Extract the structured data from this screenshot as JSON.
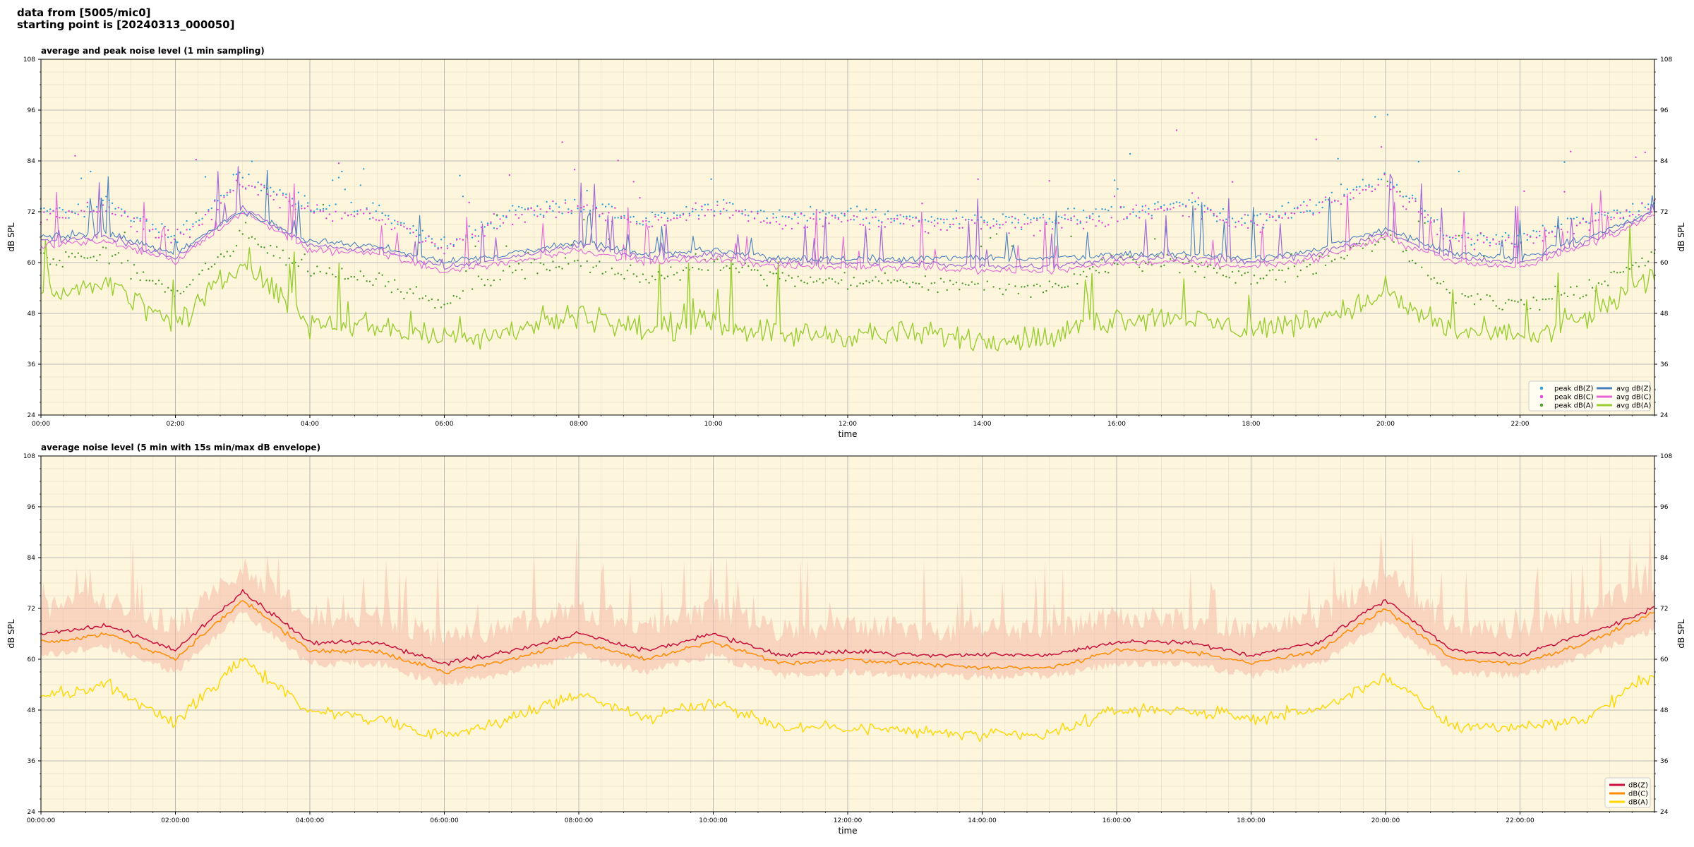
{
  "header": {
    "line1": "data from [5005/mic0]",
    "line2": "starting point is [20240313_000050]"
  },
  "colors": {
    "background": "#fdf6dc",
    "grid": "#b9b9b9",
    "peak_z": "#2a9ed8",
    "peak_c": "#e040d8",
    "peak_a": "#4c9a2a",
    "avg_z": "#4a7fbf",
    "avg_c": "#e865d8",
    "avg_a": "#9acd32",
    "top_purple": "#a56ad6",
    "bottom_z": "#c8103c",
    "bottom_c": "#ff8c00",
    "bottom_a": "#ffd700",
    "envelope": "#f5b8a8"
  },
  "chart_data": [
    {
      "type": "line",
      "title": "average and peak noise level (1 min sampling)",
      "xlabel": "time",
      "ylabel": "dB SPL",
      "ylim": [
        24,
        108
      ],
      "xlim_hours": [
        0,
        24
      ],
      "yticks": [
        "24",
        "36",
        "48",
        "60",
        "72",
        "84",
        "96",
        "108"
      ],
      "xtick_labels": [
        "00:00",
        "02:00",
        "04:00",
        "06:00",
        "08:00",
        "10:00",
        "12:00",
        "14:00",
        "16:00",
        "18:00",
        "20:00",
        "22:00"
      ],
      "grid": true,
      "legend_position": "lower-right",
      "legend": [
        "peak dB(Z)",
        "peak dB(C)",
        "peak dB(A)",
        "avg dB(Z)",
        "avg dB(C)",
        "avg dB(A)"
      ],
      "x": [
        "00:00",
        "01:00",
        "02:00",
        "03:00",
        "04:00",
        "05:00",
        "06:00",
        "07:00",
        "08:00",
        "09:00",
        "10:00",
        "11:00",
        "12:00",
        "13:00",
        "14:00",
        "15:00",
        "16:00",
        "17:00",
        "18:00",
        "19:00",
        "20:00",
        "21:00",
        "22:00",
        "23:00",
        "24:00"
      ],
      "series": [
        {
          "name": "avg dB(Z)",
          "values": [
            66,
            67,
            62,
            72,
            65,
            64,
            60,
            62,
            65,
            62,
            63,
            61,
            61,
            61,
            61,
            61,
            62,
            62,
            61,
            63,
            68,
            62,
            61,
            66,
            72
          ]
        },
        {
          "name": "avg dB(C)",
          "values": [
            64,
            65,
            60,
            72,
            63,
            62,
            58,
            60,
            63,
            60,
            61,
            59,
            59,
            59,
            58,
            58,
            60,
            60,
            59,
            61,
            66,
            60,
            59,
            64,
            71
          ]
        },
        {
          "name": "avg dB(A)",
          "values": [
            52,
            55,
            45,
            60,
            46,
            45,
            42,
            44,
            48,
            44,
            46,
            43,
            43,
            43,
            42,
            42,
            47,
            47,
            44,
            47,
            52,
            44,
            42,
            47,
            57
          ]
        },
        {
          "name": "peak dB(Z)",
          "values": [
            72,
            74,
            66,
            80,
            73,
            72,
            64,
            72,
            74,
            70,
            74,
            70,
            72,
            70,
            70,
            70,
            72,
            74,
            70,
            74,
            80,
            66,
            66,
            70,
            74
          ]
        },
        {
          "name": "peak dB(C)",
          "values": [
            71,
            73,
            65,
            79,
            72,
            71,
            63,
            71,
            73,
            69,
            73,
            69,
            71,
            69,
            69,
            69,
            71,
            73,
            69,
            73,
            79,
            65,
            65,
            69,
            73
          ]
        },
        {
          "name": "peak dB(A)",
          "values": [
            60,
            62,
            52,
            66,
            58,
            56,
            50,
            58,
            60,
            56,
            60,
            56,
            56,
            55,
            54,
            54,
            60,
            60,
            56,
            60,
            66,
            52,
            50,
            54,
            62
          ]
        }
      ]
    },
    {
      "type": "line",
      "title": "average noise level (5 min with 15s min/max dB envelope)",
      "xlabel": "time",
      "ylabel": "dB SPL",
      "ylim": [
        24,
        108
      ],
      "xlim_hours": [
        0,
        24
      ],
      "yticks": [
        "24",
        "36",
        "48",
        "60",
        "72",
        "84",
        "96",
        "108"
      ],
      "xtick_labels": [
        "00:00:00",
        "02:00:00",
        "04:00:00",
        "06:00:00",
        "08:00:00",
        "10:00:00",
        "12:00:00",
        "14:00:00",
        "16:00:00",
        "18:00:00",
        "20:00:00",
        "22:00:00"
      ],
      "grid": true,
      "legend_position": "lower-right",
      "legend": [
        "dB(Z)",
        "dB(C)",
        "dB(A)"
      ],
      "x": [
        "00:00",
        "01:00",
        "02:00",
        "03:00",
        "04:00",
        "05:00",
        "06:00",
        "07:00",
        "08:00",
        "09:00",
        "10:00",
        "11:00",
        "12:00",
        "13:00",
        "14:00",
        "15:00",
        "16:00",
        "17:00",
        "18:00",
        "19:00",
        "20:00",
        "21:00",
        "22:00",
        "23:00",
        "24:00"
      ],
      "series": [
        {
          "name": "dB(Z)",
          "values": [
            66,
            68,
            62,
            76,
            64,
            64,
            59,
            62,
            66,
            62,
            66,
            61,
            62,
            61,
            61,
            61,
            64,
            64,
            61,
            64,
            74,
            62,
            61,
            66,
            72
          ]
        },
        {
          "name": "dB(C)",
          "values": [
            64,
            66,
            60,
            74,
            62,
            62,
            57,
            60,
            64,
            60,
            64,
            59,
            60,
            59,
            58,
            58,
            62,
            62,
            59,
            62,
            72,
            60,
            59,
            64,
            71
          ]
        },
        {
          "name": "dB(A)",
          "values": [
            51,
            54,
            45,
            60,
            48,
            46,
            42,
            46,
            52,
            46,
            50,
            44,
            44,
            43,
            42,
            42,
            48,
            48,
            46,
            48,
            56,
            44,
            44,
            46,
            57
          ]
        }
      ]
    }
  ]
}
